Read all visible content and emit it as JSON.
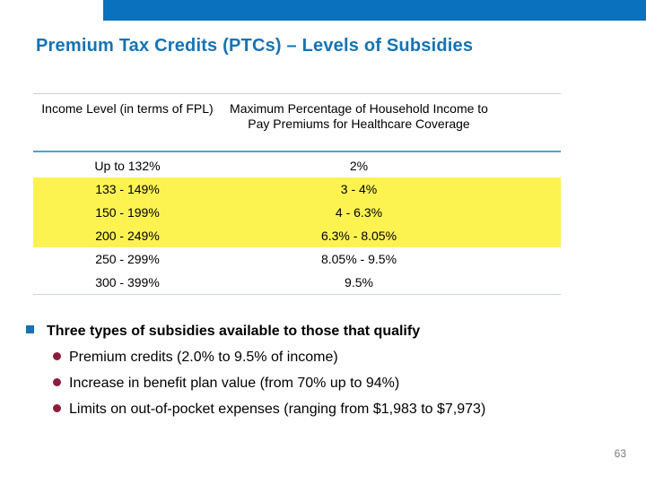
{
  "slide": {
    "title": "Premium Tax Credits (PTCs) – Levels of Subsidies",
    "page_number": "63"
  },
  "table": {
    "columns": {
      "income": "Income Level (in terms of FPL)",
      "premium": "Maximum Percentage of Household Income to Pay Premiums for Healthcare Coverage"
    },
    "rows": [
      {
        "income": "Up to 132%",
        "premium": "2%",
        "highlight": false
      },
      {
        "income": "133 - 149%",
        "premium": "3 - 4%",
        "highlight": true
      },
      {
        "income": "150 - 199%",
        "premium": "4 - 6.3%",
        "highlight": true
      },
      {
        "income": "200 - 249%",
        "premium": "6.3% - 8.05%",
        "highlight": true
      },
      {
        "income": "250 - 299%",
        "premium": "8.05% - 9.5%",
        "highlight": false
      },
      {
        "income": "300 - 399%",
        "premium": "9.5%",
        "highlight": false
      }
    ]
  },
  "bullets": {
    "main": "Three types of subsidies available to those that qualify",
    "sub": [
      "Premium credits (2.0% to 9.5% of income)",
      "Increase in benefit plan value (from 70% up to 94%)",
      "Limits on out-of-pocket expenses (ranging from $1,983 to $7,973)"
    ]
  },
  "colors": {
    "top_bar": "#0971BE",
    "title_text": "#1573B5",
    "row_highlight": "#FCF351",
    "header_rule": "#41AAC7",
    "table_border": "#D0D0D0",
    "sub_bullet": "#8E1C3B",
    "main_bullet": "#1573B5",
    "page_number": "#7F7F7F"
  }
}
